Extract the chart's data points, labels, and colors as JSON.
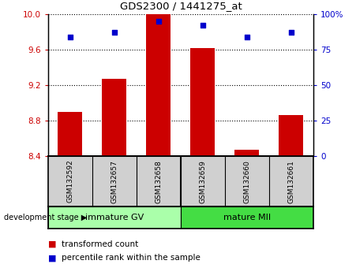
{
  "title": "GDS2300 / 1441275_at",
  "samples": [
    "GSM132592",
    "GSM132657",
    "GSM132658",
    "GSM132659",
    "GSM132660",
    "GSM132661"
  ],
  "bar_values": [
    8.9,
    9.27,
    10.0,
    9.62,
    8.47,
    8.86
  ],
  "bar_bottom": 8.4,
  "percentile_values": [
    84,
    87,
    95,
    92,
    84,
    87
  ],
  "ylim_left": [
    8.4,
    10.0
  ],
  "ylim_right": [
    0,
    100
  ],
  "yticks_left": [
    8.4,
    8.8,
    9.2,
    9.6,
    10.0
  ],
  "yticks_right": [
    0,
    25,
    50,
    75,
    100
  ],
  "bar_color": "#cc0000",
  "dot_color": "#0000cc",
  "group1_label": "immature GV",
  "group2_label": "mature MII",
  "group1_color": "#aaffaa",
  "group2_color": "#44dd44",
  "stage_label": "development stage",
  "legend1": "transformed count",
  "legend2": "percentile rank within the sample",
  "bar_width": 0.55,
  "tick_label_color_left": "#cc0000",
  "tick_label_color_right": "#0000cc",
  "sample_box_color": "#d0d0d0",
  "fig_width": 4.51,
  "fig_height": 3.54,
  "dpi": 100
}
